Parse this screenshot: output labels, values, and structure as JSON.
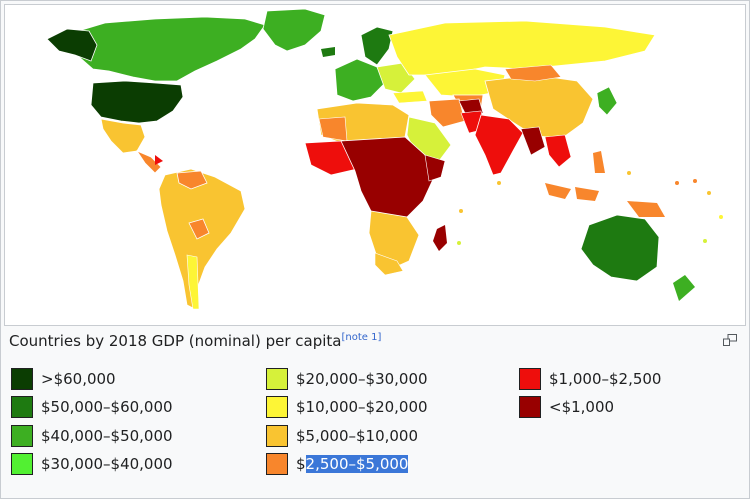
{
  "caption": {
    "text": "Countries by 2018 GDP (nominal) per capita",
    "note": "[note 1]"
  },
  "magnify_icon": "magnify-icon",
  "legend": [
    {
      "label": ">$60,000",
      "color": "#0b3d02"
    },
    {
      "label": "$50,000–$60,000",
      "color": "#1e7a11"
    },
    {
      "label": "$40,000–$50,000",
      "color": "#3daf22"
    },
    {
      "label": "$30,000–$40,000",
      "color": "#52f032"
    },
    {
      "label": "$20,000–$30,000",
      "color": "#d6f13a"
    },
    {
      "label": "$10,000–$20,000",
      "color": "#fdf536"
    },
    {
      "label": "$5,000–$10,000",
      "color": "#f9c431"
    },
    {
      "label_prefix": "$",
      "label_selected": "2,500–$5,000",
      "color": "#f8862c"
    },
    {
      "label": "$1,000–$2,500",
      "color": "#ee0e0c"
    },
    {
      "label": "<$1,000",
      "color": "#980000"
    }
  ]
}
